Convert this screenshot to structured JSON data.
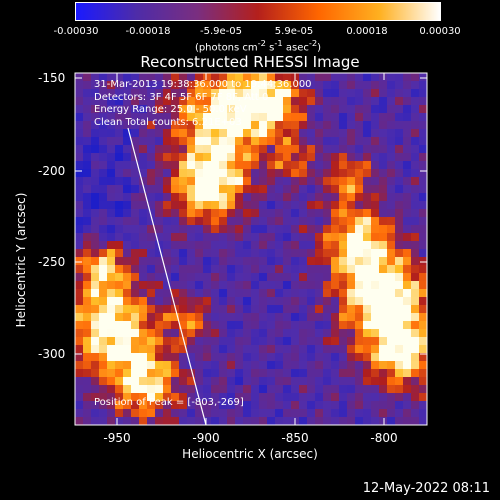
{
  "colorbar": {
    "ticks": [
      "-0.00030",
      "-0.00018",
      "-5.9e-05",
      "5.9e-05",
      "0.00018",
      "0.00030"
    ],
    "units_text": "(photons cm",
    "units_sup1": "-2",
    "units_mid1": " s",
    "units_sup2": "-1",
    "units_mid2": " asec",
    "units_sup3": "-2",
    "units_end": ")",
    "colors": [
      "#1a1aff",
      "#4e2ca8",
      "#7a2e80",
      "#b4201c",
      "#ff6600",
      "#ffb020",
      "#ffffff"
    ]
  },
  "title": "Reconstructed RHESSI Image",
  "annotation": {
    "line1": "31-Mar-2013 19:38:36.000 to 19:44:36.000",
    "line2": "Detectors: 3F 4F 5F 6F 7F 8F, Att 0",
    "line3": "Energy Range: 25.0 - 50.0 keV",
    "line4": "Clean    Total counts: 6.21E+03"
  },
  "peak_text": "Position of Peak = [-803,-269]",
  "x_axis": {
    "label": "Heliocentric X (arcsec)",
    "ticks": [
      "-950",
      "-900",
      "-850",
      "-800"
    ]
  },
  "y_axis": {
    "label": "Heliocentric Y (arcsec)",
    "ticks": [
      "-150",
      "-200",
      "-250",
      "-300"
    ]
  },
  "date_stamp": "12-May-2022 08:11"
}
